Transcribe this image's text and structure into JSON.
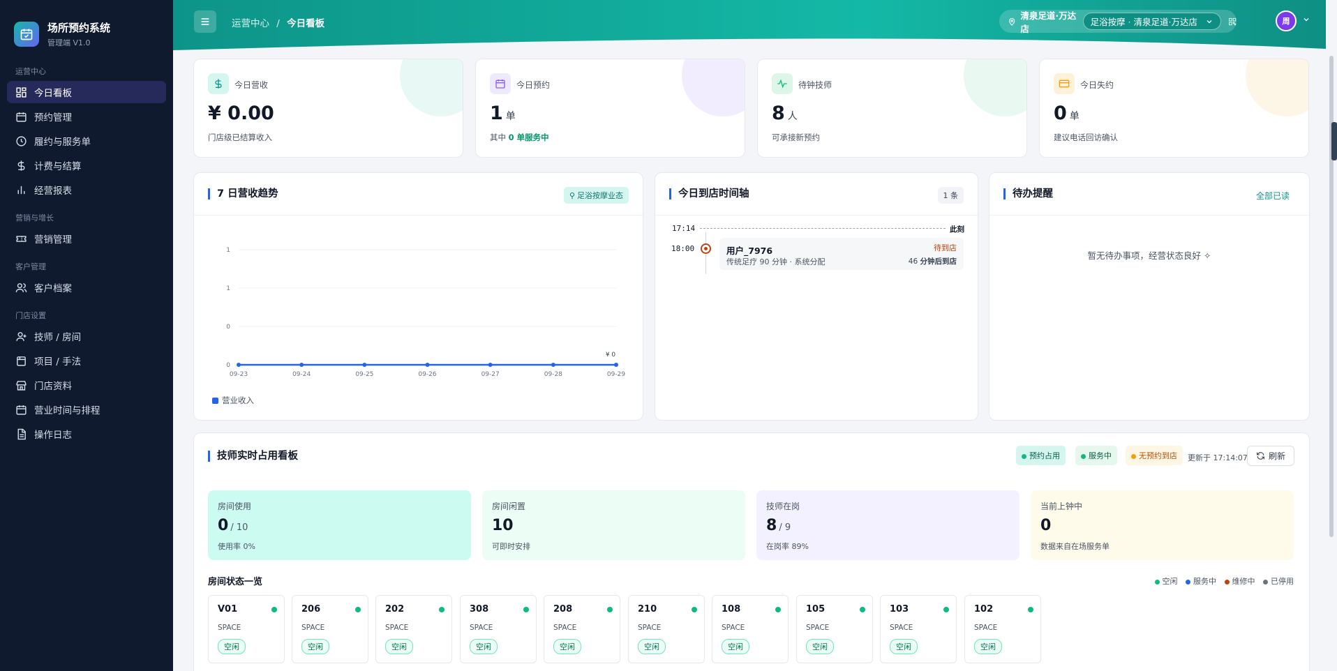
{
  "brand": {
    "title": "场所预约系统",
    "subtitle": "管理端 V1.0"
  },
  "sidebar": {
    "groups": [
      {
        "label": "运营中心"
      },
      {
        "label": "营销与增长"
      },
      {
        "label": "客户管理"
      },
      {
        "label": "门店设置"
      }
    ],
    "items": [
      {
        "label": "今日看板",
        "icon": "dashboard-icon",
        "active": true
      },
      {
        "label": "预约管理",
        "icon": "calendar-icon"
      },
      {
        "label": "履约与服务单",
        "icon": "clock-icon"
      },
      {
        "label": "计费与结算",
        "icon": "dollar-icon"
      },
      {
        "label": "经营报表",
        "icon": "bar-chart-icon"
      },
      {
        "label": "营销管理",
        "icon": "ticket-icon"
      },
      {
        "label": "客户档案",
        "icon": "users-icon"
      },
      {
        "label": "技师 / 房间",
        "icon": "user-icon"
      },
      {
        "label": "项目 / 手法",
        "icon": "box-icon"
      },
      {
        "label": "门店资料",
        "icon": "store-icon"
      },
      {
        "label": "营业时间与排程",
        "icon": "schedule-icon"
      },
      {
        "label": "操作日志",
        "icon": "file-icon"
      }
    ]
  },
  "header": {
    "breadcrumb_parent": "运营中心",
    "breadcrumb_sep": "/",
    "breadcrumb_current": "今日看板",
    "store_name": "清泉足道·万达店",
    "store_select_value": "足浴按摩 · 清泉足道·万达店",
    "avatar_text": "周",
    "colors": {
      "accent": "#14b8a6",
      "nav_active": "#252a5a"
    }
  },
  "stats": [
    {
      "label": "今日营收",
      "value": "¥ 0.00",
      "unit": "",
      "desc": "门店级已结算收入",
      "icon": "dollar-icon",
      "color": "#14b8a6"
    },
    {
      "label": "今日预约",
      "value": "1",
      "unit": "单",
      "desc_prefix": "其中",
      "desc_highlight": "0 单服务中",
      "icon": "calendar-icon",
      "color": "#8b5cf6"
    },
    {
      "label": "待钟技师",
      "value": "8",
      "unit": "人",
      "desc": "可承接新预约",
      "icon": "pulse-icon",
      "color": "#10b981"
    },
    {
      "label": "今日失约",
      "value": "0",
      "unit": "单",
      "desc": "建议电话回访确认",
      "icon": "card-icon",
      "color": "#f59e0b"
    }
  ],
  "trend": {
    "title": "7 日营收趋势",
    "tag": "足浴按摩业态",
    "legend": "营业收入",
    "last_label": "¥ 0"
  },
  "chart_data": {
    "type": "line",
    "x": [
      "09-23",
      "09-24",
      "09-25",
      "09-26",
      "09-27",
      "09-28",
      "09-29"
    ],
    "series": [
      {
        "name": "营业收入",
        "values": [
          0,
          0,
          0,
          0,
          0,
          0,
          0
        ]
      }
    ],
    "yticks": [
      "0",
      "0",
      "1",
      "1"
    ],
    "color": "#2563eb"
  },
  "timeline": {
    "title": "今日到店时间轴",
    "count": "1 条",
    "now_time": "17:14",
    "now_label": "此刻",
    "entries": [
      {
        "time": "18:00",
        "name": "用户_7976",
        "status": "待到店",
        "detail": "传统足疗 90 分钟 · 系统分配",
        "eta_num": "46",
        "eta_text": "分钟后到店"
      }
    ]
  },
  "todo": {
    "title": "待办提醒",
    "action": "全部已读",
    "empty": "暂无待办事项，经营状态良好 ✧"
  },
  "occupancy": {
    "title": "技师实时占用看板",
    "legend_tags": [
      "预约占用",
      "服务中",
      "无预约到店"
    ],
    "updated": "更新于 17:14:07",
    "refresh": "刷新",
    "kpis": [
      {
        "label": "房间使用",
        "value": "0",
        "sub": "/ 10",
        "desc": "使用率 0%",
        "bg": "#ccfbf1"
      },
      {
        "label": "房间闲置",
        "value": "10",
        "sub": "",
        "desc": "可即时安排",
        "bg": "#ecfdf5"
      },
      {
        "label": "技师在岗",
        "value": "8",
        "sub": "/ 9",
        "desc": "在岗率 89%",
        "bg": "#f3f0ff"
      },
      {
        "label": "当前上钟中",
        "value": "0",
        "sub": "",
        "desc": "数据来自在场服务单",
        "bg": "#fffbeb"
      }
    ],
    "rooms_title": "房间状态一览",
    "room_legend": [
      "空闲",
      "服务中",
      "维修中",
      "已停用"
    ],
    "rooms": [
      {
        "name": "V01",
        "type": "SPACE",
        "status": "空闲"
      },
      {
        "name": "206",
        "type": "SPACE",
        "status": "空闲"
      },
      {
        "name": "202",
        "type": "SPACE",
        "status": "空闲"
      },
      {
        "name": "308",
        "type": "SPACE",
        "status": "空闲"
      },
      {
        "name": "208",
        "type": "SPACE",
        "status": "空闲"
      },
      {
        "name": "210",
        "type": "SPACE",
        "status": "空闲"
      },
      {
        "name": "108",
        "type": "SPACE",
        "status": "空闲"
      },
      {
        "name": "105",
        "type": "SPACE",
        "status": "空闲"
      },
      {
        "name": "103",
        "type": "SPACE",
        "status": "空闲"
      },
      {
        "name": "102",
        "type": "SPACE",
        "status": "空闲"
      }
    ]
  }
}
